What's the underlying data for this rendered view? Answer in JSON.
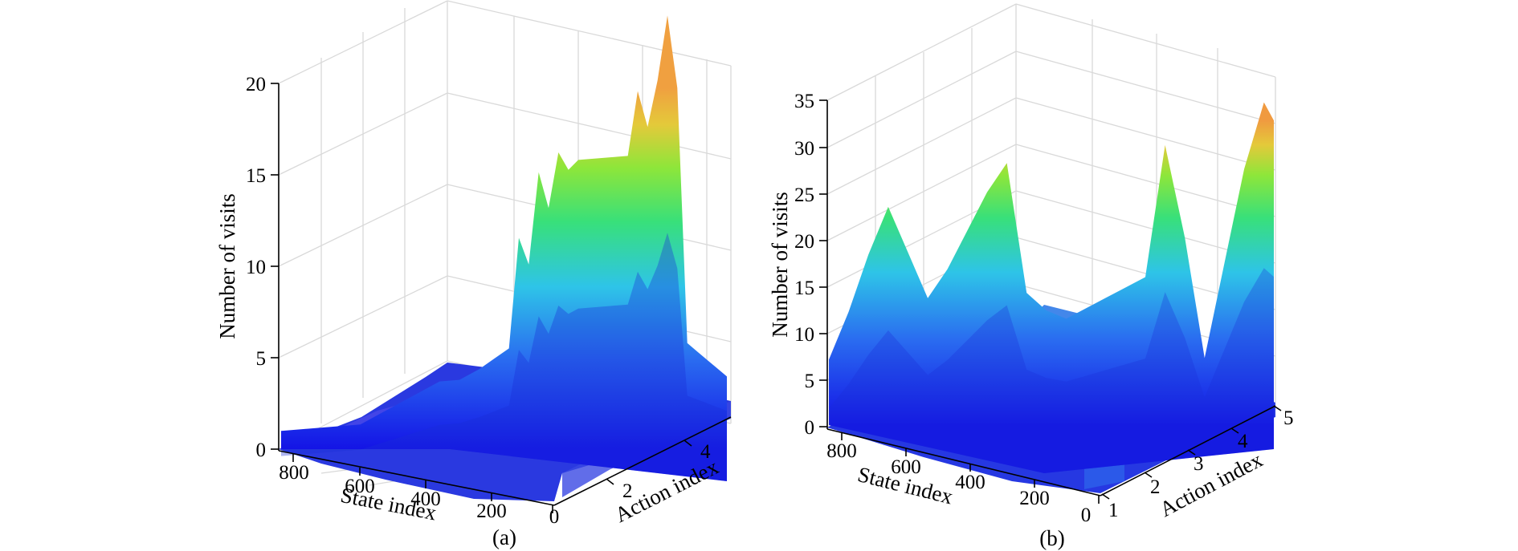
{
  "chart_data": [
    {
      "type": "surface",
      "panel_label": "(a)",
      "zlabel": "Number of visits",
      "xlabel": "State index",
      "ylabel": "Action index",
      "zlim": [
        0,
        20
      ],
      "z_ticks": [
        "0",
        "5",
        "10",
        "15",
        "20"
      ],
      "state_ticks": [
        "800",
        "600",
        "400",
        "200",
        "0"
      ],
      "action_ticks": [
        "2",
        "4"
      ],
      "grid": true,
      "colormap": "blue-to-yellow (jet-like)",
      "profile": {
        "state": [
          900,
          860,
          820,
          780,
          740,
          700,
          660,
          620,
          580,
          540,
          500,
          470,
          440,
          420,
          400,
          380,
          360,
          340,
          320,
          300,
          280,
          260,
          240,
          220,
          200,
          180,
          160,
          140,
          120,
          100,
          80,
          60,
          40,
          20,
          0
        ],
        "visits": [
          1,
          1,
          1,
          1,
          1,
          1.5,
          2,
          2.5,
          3,
          3,
          3.5,
          4,
          4.5,
          10.5,
          9,
          14,
          12,
          15,
          14,
          14.5,
          14.5,
          14.5,
          14.5,
          14.5,
          14.5,
          18,
          16,
          18.5,
          22,
          18,
          4,
          3.5,
          3,
          2.5,
          2
        ]
      }
    },
    {
      "type": "surface",
      "panel_label": "(b)",
      "zlabel": "Number of visits",
      "xlabel": "State index",
      "ylabel": "Action index",
      "zlim": [
        0,
        35
      ],
      "z_ticks": [
        "0",
        "5",
        "10",
        "15",
        "20",
        "25",
        "30",
        "35"
      ],
      "state_ticks": [
        "800",
        "600",
        "400",
        "200",
        "0"
      ],
      "action_ticks": [
        "1",
        "2",
        "3",
        "4",
        "5"
      ],
      "grid": true,
      "colormap": "blue-to-yellow (jet-like)",
      "profile": {
        "state": [
          900,
          860,
          820,
          780,
          740,
          700,
          660,
          620,
          580,
          540,
          500,
          460,
          420,
          380,
          340,
          300,
          260,
          220,
          180,
          140,
          100,
          60,
          20,
          0
        ],
        "visits": [
          7,
          12,
          18,
          23,
          18,
          13,
          16,
          20,
          24,
          27,
          13,
          11,
          10,
          11,
          12,
          13,
          14,
          28,
          18,
          5,
          15,
          25,
          32,
          30
        ]
      }
    }
  ]
}
